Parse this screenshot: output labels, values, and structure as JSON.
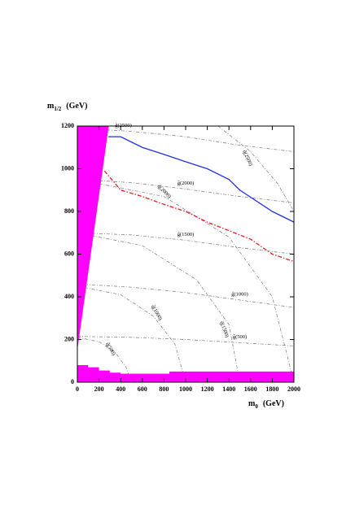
{
  "chart_data": {
    "type": "line",
    "ylabel": {
      "symbol": "m",
      "subscript": "1/2",
      "unit": "(GeV)"
    },
    "xlabel": {
      "symbol": "m",
      "subscript": "0",
      "unit": "(GeV)"
    },
    "xlim": [
      0,
      2000
    ],
    "ylim": [
      0,
      1200
    ],
    "xticks": [
      0,
      200,
      400,
      600,
      800,
      1000,
      1200,
      1400,
      1600,
      1800,
      2000
    ],
    "yticks": [
      0,
      200,
      400,
      600,
      800,
      1000,
      1200
    ],
    "series": [
      {
        "color": "#2030e0",
        "linestyle": "solid",
        "x": [
          286,
          400,
          600,
          800,
          1000,
          1200,
          1400,
          1500,
          1800,
          2000
        ],
        "values": [
          1150,
          1150,
          1100,
          1067,
          1033,
          1000,
          950,
          900,
          800,
          750
        ]
      },
      {
        "color": "#e02020",
        "linestyle": "dashed",
        "x": [
          250,
          400,
          600,
          800,
          1000,
          1200,
          1400,
          1600,
          1800,
          2000
        ],
        "values": [
          990,
          900,
          870,
          833,
          800,
          750,
          710,
          670,
          600,
          565
        ]
      }
    ],
    "regions": [
      {
        "color": "#ff00ff",
        "x": [
          0,
          0,
          290
        ],
        "values": [
          150,
          1200,
          1200
        ]
      },
      {
        "color": "#ff00ff",
        "x": [
          0,
          0,
          100,
          100,
          200,
          200,
          300,
          300,
          400,
          400,
          850,
          850,
          2000,
          2000
        ],
        "values": [
          0,
          80,
          80,
          70,
          70,
          55,
          55,
          45,
          45,
          40,
          40,
          50,
          50,
          0
        ]
      }
    ],
    "contours": [
      {
        "label": "q̃(500)",
        "x": [
          0,
          200,
          350,
          450,
          500
        ],
        "values": [
          210,
          190,
          140,
          70,
          0
        ]
      },
      {
        "label": "q̃(1000)",
        "x": [
          0,
          400,
          700,
          900,
          1000
        ],
        "values": [
          450,
          410,
          310,
          180,
          0
        ]
      },
      {
        "label": "q̃(1500)",
        "x": [
          0,
          600,
          1100,
          1400,
          1500
        ],
        "values": [
          700,
          640,
          480,
          270,
          0
        ]
      },
      {
        "label": "q̃(2000)",
        "x": [
          0,
          800,
          1400,
          1800,
          2000
        ],
        "values": [
          950,
          870,
          680,
          400,
          0
        ]
      },
      {
        "label": "q̃(2500)",
        "x": [
          1300,
          1600,
          1850,
          2000
        ],
        "values": [
          1200,
          1080,
          930,
          800
        ]
      },
      {
        "label": "g̃(500)",
        "x": [
          0,
          500,
          1000,
          1500,
          2000
        ],
        "values": [
          215,
          210,
          200,
          185,
          170
        ]
      },
      {
        "label": "g̃(1000)",
        "x": [
          0,
          500,
          1000,
          1500,
          2000
        ],
        "values": [
          460,
          445,
          420,
          385,
          350
        ]
      },
      {
        "label": "g̃(1500)",
        "x": [
          0,
          500,
          1000,
          1500,
          2000
        ],
        "values": [
          700,
          690,
          665,
          630,
          600
        ]
      },
      {
        "label": "g̃(2000)",
        "x": [
          0,
          500,
          1000,
          1500,
          2000
        ],
        "values": [
          950,
          935,
          905,
          870,
          840
        ]
      },
      {
        "label": "g̃(2500)",
        "x": [
          0,
          500,
          1000,
          1500,
          2000
        ],
        "values": [
          1190,
          1175,
          1150,
          1110,
          1080
        ]
      }
    ]
  }
}
